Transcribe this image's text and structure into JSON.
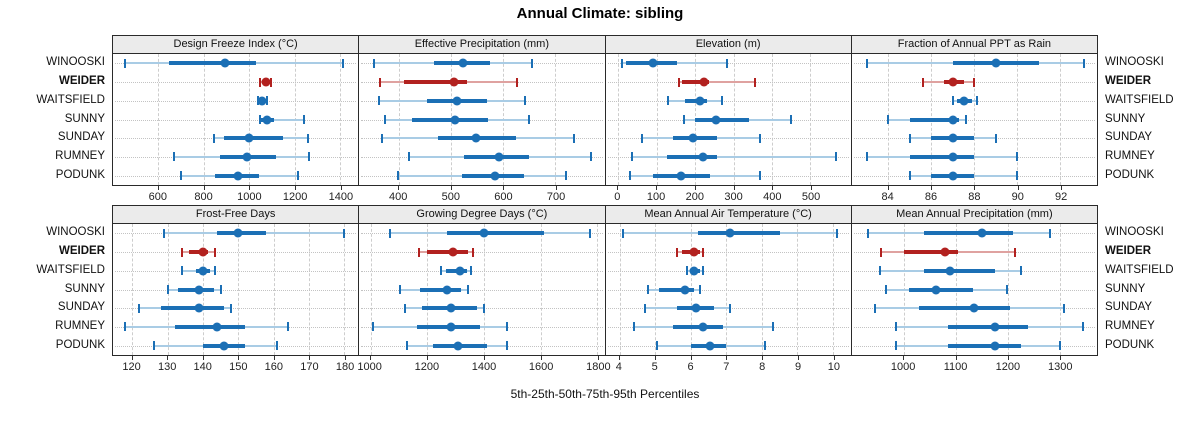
{
  "title": "Annual Climate: sibling",
  "xlab": "5th-25th-50th-75th-95th Percentiles",
  "sites": [
    "WINOOSKI",
    "WEIDER",
    "WAITSFIELD",
    "SUNNY",
    "SUNDAY",
    "RUMNEY",
    "PODUNK"
  ],
  "highlight_site": "WEIDER",
  "colors": {
    "series": "#1b6fb5",
    "series_light": "#a9cce5",
    "highlight": "#b2211f",
    "highlight_light": "#dfa2a0",
    "strip_bg": "#ebebeb",
    "grid": "#cdcdcd",
    "border": "#2a2a2a"
  },
  "chart_data": {
    "type": "scatter",
    "variant": "percentile-interval-dotplot",
    "percentiles": [
      5,
      25,
      50,
      75,
      95
    ],
    "grid": "dashed-vertical-dotted-horizontal",
    "layout": "2 rows x 4 columns of panels, shared site categories",
    "panels": [
      {
        "title": "Design Freeze Index (°C)",
        "ticks": [
          600,
          800,
          1000,
          1200,
          1400
        ],
        "xlim": [
          400,
          1480
        ],
        "rows": [
          [
            452,
            645,
            895,
            1030,
            1415
          ],
          [
            1047,
            1056,
            1074,
            1084,
            1096
          ],
          [
            1040,
            1047,
            1055,
            1065,
            1076
          ],
          [
            1047,
            1053,
            1078,
            1111,
            1240
          ],
          [
            845,
            890,
            1000,
            1148,
            1260
          ],
          [
            670,
            870,
            990,
            1120,
            1265
          ],
          [
            700,
            850,
            950,
            1045,
            1215
          ]
        ]
      },
      {
        "title": "Effective Precipitation (mm)",
        "ticks": [
          400,
          500,
          600,
          700
        ],
        "xlim": [
          324,
          794
        ],
        "rows": [
          [
            352,
            467,
            522,
            574,
            656
          ],
          [
            363,
            410,
            505,
            530,
            627
          ],
          [
            362,
            454,
            512,
            568,
            641
          ],
          [
            373,
            425,
            507,
            570,
            650
          ],
          [
            367,
            475,
            548,
            625,
            735
          ],
          [
            420,
            525,
            592,
            650,
            768
          ],
          [
            399,
            520,
            585,
            640,
            721
          ]
        ]
      },
      {
        "title": "Elevation (m)",
        "ticks": [
          0,
          100,
          200,
          300,
          400,
          500
        ],
        "xlim": [
          -33,
          605
        ],
        "rows": [
          [
            10,
            20,
            91,
            154,
            282
          ],
          [
            157,
            165,
            222,
            235,
            357
          ],
          [
            130,
            175,
            214,
            232,
            271
          ],
          [
            170,
            200,
            255,
            340,
            450
          ],
          [
            63,
            143,
            194,
            258,
            368
          ],
          [
            36,
            126,
            220,
            258,
            566
          ],
          [
            30,
            91,
            164,
            239,
            368
          ]
        ]
      },
      {
        "title": "Fraction of Annual PPT as Rain",
        "ticks": [
          84,
          86,
          88,
          90,
          92
        ],
        "xlim": [
          82.3,
          93.7
        ],
        "rows": [
          [
            83,
            87,
            89,
            91,
            93.1
          ],
          [
            85.6,
            86.6,
            87,
            87.5,
            88
          ],
          [
            87,
            87.2,
            87.5,
            87.9,
            88.1
          ],
          [
            84,
            85,
            87,
            87.3,
            87.6
          ],
          [
            85,
            86,
            87,
            88,
            89
          ],
          [
            83,
            85,
            87,
            88,
            90
          ],
          [
            85,
            86,
            87,
            88,
            90
          ]
        ]
      },
      {
        "title": "Frost-Free Days",
        "ticks": [
          120,
          130,
          140,
          150,
          160,
          170,
          180
        ],
        "xlim": [
          114.5,
          184
        ],
        "rows": [
          [
            129,
            144,
            150,
            158,
            180
          ],
          [
            134,
            136,
            140,
            141.5,
            143.5
          ],
          [
            134,
            138,
            140,
            142,
            143.5
          ],
          [
            130,
            133,
            139,
            143,
            145
          ],
          [
            122,
            128,
            139,
            146,
            148
          ],
          [
            118,
            132,
            144,
            152,
            164
          ],
          [
            126,
            140,
            146,
            152,
            161
          ]
        ]
      },
      {
        "title": "Growing Degree Days (°C)",
        "ticks": [
          1000,
          1200,
          1400,
          1600,
          1800
        ],
        "xlim": [
          960,
          1825
        ],
        "rows": [
          [
            1070,
            1270,
            1400,
            1610,
            1775
          ],
          [
            1172,
            1200,
            1290,
            1343,
            1360
          ],
          [
            1250,
            1265,
            1315,
            1340,
            1355
          ],
          [
            1105,
            1175,
            1270,
            1320,
            1345
          ],
          [
            1120,
            1180,
            1285,
            1375,
            1400
          ],
          [
            1010,
            1165,
            1285,
            1385,
            1480
          ],
          [
            1130,
            1220,
            1310,
            1410,
            1480
          ]
        ]
      },
      {
        "title": "Mean Annual Air Temperature (°C)",
        "ticks": [
          4,
          5,
          6,
          7,
          8,
          9,
          10
        ],
        "xlim": [
          3.6,
          10.5
        ],
        "rows": [
          [
            4.1,
            6.2,
            7.1,
            8.5,
            10.1
          ],
          [
            5.6,
            5.75,
            6.1,
            6.25,
            6.35
          ],
          [
            5.9,
            6.0,
            6.1,
            6.25,
            6.35
          ],
          [
            4.8,
            5.1,
            5.85,
            6.1,
            6.25
          ],
          [
            4.7,
            5.6,
            6.15,
            6.65,
            7.1
          ],
          [
            4.4,
            5.5,
            6.35,
            6.9,
            8.3
          ],
          [
            5.05,
            6.0,
            6.55,
            7.0,
            8.1
          ]
        ]
      },
      {
        "title": "Mean Annual Precipitation (mm)",
        "ticks": [
          1000,
          1100,
          1200,
          1300
        ],
        "xlim": [
          900,
          1372
        ],
        "rows": [
          [
            932,
            1040,
            1150,
            1210,
            1281
          ],
          [
            957,
            1000,
            1079,
            1105,
            1214
          ],
          [
            955,
            1040,
            1090,
            1175,
            1225
          ],
          [
            965,
            1010,
            1062,
            1133,
            1199
          ],
          [
            945,
            1030,
            1135,
            1205,
            1308
          ],
          [
            985,
            1085,
            1175,
            1240,
            1345
          ],
          [
            985,
            1085,
            1175,
            1225,
            1300
          ]
        ]
      }
    ]
  }
}
